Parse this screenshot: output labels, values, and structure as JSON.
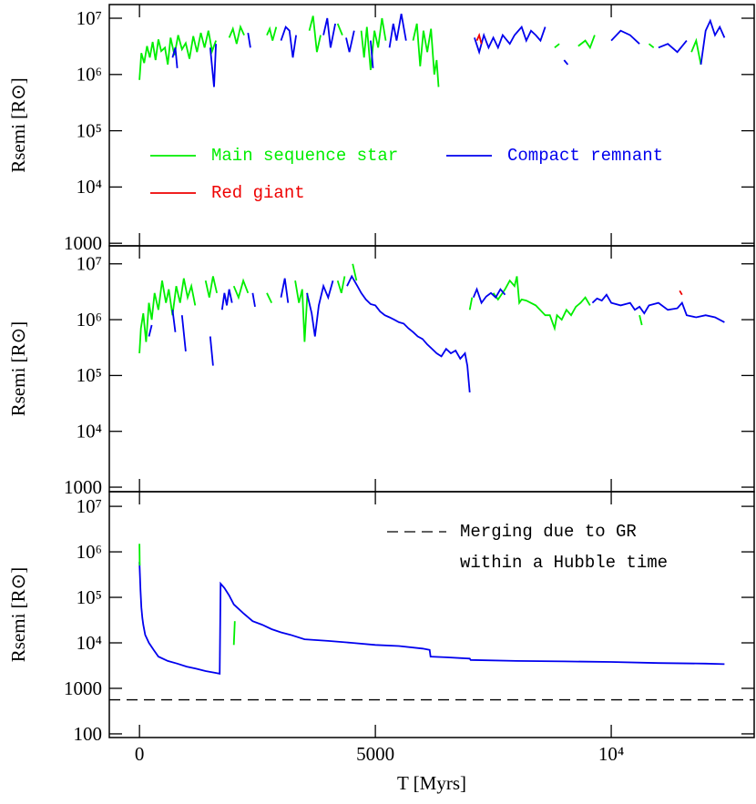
{
  "chart_data": [
    {
      "type": "line",
      "y_label": "Rsemi [R⊙]",
      "log_y": true,
      "xtick_labels": false,
      "xlim": [
        -640,
        13030
      ],
      "ylim": [
        900,
        17500000
      ],
      "xticks": [
        0,
        5000,
        10000
      ],
      "yticks": [
        1000,
        {
          "value": 10000,
          "label": "10⁴"
        },
        {
          "value": 100000,
          "label": "10⁵"
        },
        {
          "value": 1000000,
          "label": "10⁶"
        },
        {
          "value": 10000000,
          "label": "10⁷"
        }
      ],
      "legend": true,
      "series": [
        {
          "name": "Main sequence star",
          "color": "#00ee00",
          "x": [
            0,
            40,
            100,
            160,
            220,
            280,
            340,
            400,
            460,
            540,
            600,
            660,
            740,
            820,
            900,
            980,
            1060,
            1140,
            1220,
            1300,
            1380,
            1460,
            1540,
            1620,
            1700,
            1900,
            1980,
            2060,
            2140,
            2220,
            2300,
            2700,
            2760,
            2820,
            2900,
            2980,
            3600,
            3680,
            3760,
            3840,
            3900,
            4200,
            4300,
            4380,
            4700,
            4760,
            4820,
            4900,
            4980,
            5060,
            5140,
            5220,
            5300,
            5800,
            5880,
            5950,
            6020,
            6100,
            6180,
            6250,
            6300,
            6340,
            6380,
            8800,
            8900,
            9000,
            9300,
            9450,
            9550,
            9650,
            9750,
            10800,
            10900,
            11000,
            11700,
            11800,
            11900
          ],
          "values": [
            800000,
            2400000,
            1600000,
            3200000,
            2000000,
            3800000,
            1800000,
            4200000,
            2600000,
            3000000,
            1500000,
            4500000,
            2200000,
            5000000,
            2800000,
            3600000,
            1900000,
            4800000,
            2500000,
            5500000,
            3000000,
            6000000,
            2600000,
            4000000,
            null,
            4500000,
            6500000,
            3500000,
            7000000,
            5000000,
            null,
            5000000,
            6500000,
            4000000,
            7000000,
            null,
            6000000,
            11000000,
            2500000,
            5000000,
            null,
            8000000,
            5000000,
            null,
            6000000,
            2000000,
            7000000,
            1200000,
            6000000,
            3000000,
            10000000,
            4000000,
            null,
            4000000,
            8000000,
            1400000,
            6000000,
            2500000,
            6500000,
            1000000,
            1800000,
            600000,
            null,
            3000000,
            3500000,
            null,
            3200000,
            4000000,
            3000000,
            5000000,
            null,
            3500000,
            3000000,
            null,
            2500000,
            4000000,
            1500000
          ]
        },
        {
          "name": "Compact remnant",
          "color": "#0000ee",
          "x": [
            700,
            760,
            800,
            850,
            1500,
            1580,
            1620,
            1680,
            2300,
            2350,
            2400,
            3000,
            3100,
            3180,
            3250,
            3320,
            3400,
            3900,
            3980,
            4050,
            4150,
            4200,
            4380,
            4450,
            4550,
            4620,
            4900,
            4950,
            5000,
            5300,
            5380,
            5450,
            5550,
            5650,
            5750,
            7100,
            7200,
            7300,
            7400,
            7500,
            7600,
            7700,
            7850,
            7950,
            8100,
            8200,
            8300,
            8400,
            8500,
            8600,
            8700,
            9000,
            9080,
            9150,
            10000,
            10200,
            10400,
            10600,
            10800,
            11000,
            11200,
            11400,
            11600,
            11700,
            11900,
            12000,
            12100,
            12200,
            12300,
            12400
          ],
          "values": [
            2000000,
            3000000,
            1300000,
            null,
            3000000,
            600000,
            3500000,
            null,
            5500000,
            3000000,
            null,
            4000000,
            7000000,
            6000000,
            2000000,
            5000000,
            null,
            5000000,
            10000000,
            3000000,
            8000000,
            null,
            4500000,
            2500000,
            6000000,
            null,
            4000000,
            1300000,
            null,
            3000000,
            8000000,
            4000000,
            12000000,
            4000000,
            null,
            4500000,
            2500000,
            5000000,
            3000000,
            4500000,
            3000000,
            5000000,
            3500000,
            5000000,
            7000000,
            4000000,
            6000000,
            5000000,
            4000000,
            7000000,
            null,
            1800000,
            1500000,
            null,
            4000000,
            6000000,
            5000000,
            3500000,
            null,
            3000000,
            3500000,
            2500000,
            4000000,
            null,
            1500000,
            6000000,
            9000000,
            5000000,
            7000000,
            4500000
          ]
        },
        {
          "name": "Red giant",
          "color": "#ee0000",
          "x": [
            7150,
            7200,
            7250
          ],
          "values": [
            4000000,
            5000000,
            3500000
          ]
        }
      ]
    },
    {
      "type": "line",
      "y_label": "Rsemi [R⊙]",
      "log_y": true,
      "xtick_labels": false,
      "xlim": [
        -640,
        13030
      ],
      "ylim": [
        830,
        21000000
      ],
      "xticks": [
        0,
        5000,
        10000
      ],
      "yticks": [
        1000,
        {
          "value": 10000,
          "label": "10⁴"
        },
        {
          "value": 100000,
          "label": "10⁵"
        },
        {
          "value": 1000000,
          "label": "10⁶"
        },
        {
          "value": 10000000,
          "label": "10⁷"
        }
      ],
      "legend": false,
      "series": [
        {
          "color": "#00ee00",
          "x": [
            0,
            30,
            80,
            140,
            200,
            260,
            320,
            400,
            480,
            560,
            620,
            700,
            780,
            860,
            940,
            1020,
            1100,
            1180,
            1260,
            1400,
            1480,
            1560,
            1640,
            1720,
            2000,
            2100,
            2200,
            2300,
            2400,
            2700,
            2800,
            2900,
            3300,
            3380,
            3450,
            3500,
            3560,
            3620,
            4200,
            4280,
            4350,
            4420,
            4520,
            4600,
            4650,
            7000,
            7050,
            7100,
            7300,
            7380,
            7500,
            7600,
            7750,
            7850,
            7950,
            8000,
            8050,
            8100,
            8200,
            8400,
            8600,
            8700,
            8800,
            8850,
            8950,
            9050,
            9150,
            9250,
            9350,
            9450,
            9550,
            9650,
            10600,
            10650
          ],
          "values": [
            250000,
            700000,
            1300000,
            400000,
            2000000,
            1000000,
            3000000,
            1500000,
            5000000,
            2000000,
            3500000,
            1200000,
            4000000,
            2000000,
            5500000,
            2500000,
            4000000,
            1800000,
            null,
            5000000,
            2500000,
            6000000,
            3000000,
            null,
            4000000,
            2500000,
            5000000,
            3000000,
            null,
            3000000,
            2000000,
            null,
            5000000,
            2000000,
            3500000,
            400000,
            3000000,
            null,
            5000000,
            3000000,
            6000000,
            null,
            10000000,
            5000000,
            null,
            1500000,
            2500000,
            null,
            1200000,
            null,
            3000000,
            2300000,
            3500000,
            5000000,
            4000000,
            6000000,
            2000000,
            2300000,
            2200000,
            1800000,
            1200000,
            1200000,
            700000,
            1200000,
            1000000,
            1500000,
            1200000,
            1700000,
            2000000,
            2500000,
            1800000,
            null,
            1200000,
            800000
          ]
        },
        {
          "color": "#0000ee",
          "x": [
            200,
            260,
            300,
            700,
            760,
            800,
            900,
            980,
            1020,
            1500,
            1560,
            1600,
            1750,
            1800,
            1850,
            1900,
            1960,
            2000,
            2400,
            2450,
            2500,
            3000,
            3080,
            3150,
            3200,
            3550,
            3650,
            3720,
            3800,
            3900,
            4000,
            4100,
            4200,
            4400,
            4500,
            4620,
            4700,
            4800,
            4900,
            5000,
            5100,
            5200,
            5300,
            5400,
            5500,
            5600,
            5700,
            5800,
            5900,
            6000,
            6100,
            6200,
            6300,
            6400,
            6500,
            6600,
            6700,
            6800,
            6900,
            6950,
            7000,
            7050,
            7080,
            7150,
            7250,
            7350,
            7450,
            7550,
            7650,
            7750,
            7800,
            9600,
            9700,
            9800,
            9900,
            10000,
            10200,
            10400,
            10500,
            10600,
            10700,
            10800,
            11000,
            11200,
            11400,
            11500,
            11600,
            11800,
            12000,
            12200,
            12400
          ],
          "values": [
            500000,
            800000,
            null,
            1500000,
            600000,
            null,
            1200000,
            270000,
            null,
            500000,
            150000,
            null,
            1500000,
            3000000,
            1800000,
            3500000,
            2000000,
            null,
            3000000,
            1700000,
            null,
            2500000,
            5500000,
            2000000,
            null,
            3000000,
            1300000,
            500000,
            1800000,
            4000000,
            2500000,
            5000000,
            null,
            4000000,
            6000000,
            4000000,
            3000000,
            2300000,
            1900000,
            1800000,
            1400000,
            1200000,
            1100000,
            1000000,
            900000,
            850000,
            700000,
            600000,
            500000,
            450000,
            360000,
            300000,
            250000,
            220000,
            300000,
            250000,
            280000,
            200000,
            250000,
            150000,
            50000,
            null,
            2500000,
            3500000,
            2000000,
            2600000,
            3000000,
            2500000,
            3500000,
            2800000,
            null,
            2000000,
            2400000,
            2200000,
            2800000,
            2000000,
            1800000,
            2000000,
            1500000,
            1700000,
            1300000,
            1800000,
            2000000,
            1500000,
            1600000,
            2000000,
            1200000,
            1100000,
            1200000,
            1100000,
            900000
          ]
        },
        {
          "color": "#ee0000",
          "x": [
            11450,
            11500
          ],
          "values": [
            3300000,
            2800000
          ]
        }
      ]
    },
    {
      "type": "line",
      "y_label": "Rsemi [R⊙]",
      "x_label": "T [Myrs]",
      "log_y": true,
      "xtick_labels": true,
      "xlim": [
        -640,
        13030
      ],
      "ylim": [
        83,
        21000000
      ],
      "xticks": [
        0,
        5000,
        {
          "value": 10000,
          "label": "10⁴"
        }
      ],
      "yticks": [
        100,
        1000,
        {
          "value": 10000,
          "label": "10⁴"
        },
        {
          "value": 100000,
          "label": "10⁵"
        },
        {
          "value": 1000000,
          "label": "10⁶"
        },
        {
          "value": 10000000,
          "label": "10⁷"
        }
      ],
      "legend": false,
      "reference_line": {
        "value": 560,
        "style": "dashed",
        "label_lines": [
          "Merging due to GR",
          "within a Hubble time"
        ]
      },
      "series": [
        {
          "color": "#0000ee",
          "x": [
            0,
            20,
            40,
            60,
            80,
            120,
            200,
            300,
            400,
            600,
            800,
            1000,
            1200,
            1400,
            1600,
            1700,
            1720,
            1800,
            1900,
            2000,
            2200,
            2400,
            2600,
            2800,
            3000,
            3200,
            3500,
            4000,
            4500,
            5000,
            5500,
            6000,
            6150,
            6170,
            6500,
            7000,
            7020,
            8000,
            9000,
            10000,
            11000,
            12000,
            12400
          ],
          "values": [
            600000,
            150000,
            60000,
            35000,
            25000,
            15000,
            10000,
            7000,
            5000,
            4000,
            3500,
            3000,
            2700,
            2400,
            2200,
            2100,
            200000,
            160000,
            110000,
            70000,
            45000,
            30000,
            25000,
            20000,
            17000,
            15000,
            12000,
            11000,
            10000,
            9000,
            8500,
            7500,
            7000,
            5000,
            4800,
            4500,
            4200,
            4000,
            3900,
            3800,
            3600,
            3500,
            3400
          ]
        },
        {
          "color": "#00ee00",
          "x": [
            0,
            5,
            10,
            2000,
            2020
          ],
          "values": [
            1500000,
            500000,
            null,
            9000,
            30000
          ]
        }
      ]
    }
  ]
}
